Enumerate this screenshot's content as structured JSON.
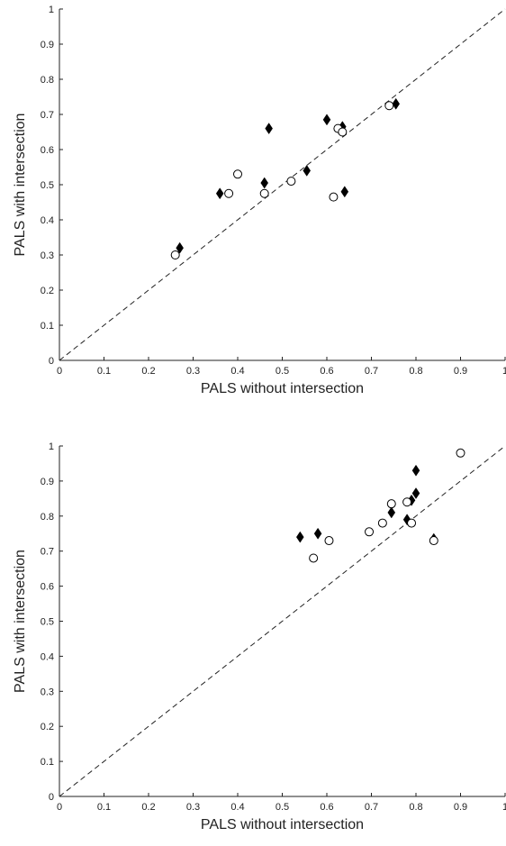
{
  "chart_data": [
    {
      "type": "scatter",
      "xlabel": "PALS without intersection",
      "ylabel": "PALS with intersection",
      "xlim": [
        0,
        1
      ],
      "ylim": [
        0,
        1
      ],
      "xticks": [
        "0",
        "0.1",
        "0.2",
        "0.3",
        "0.4",
        "0.5",
        "0.6",
        "0.7",
        "0.8",
        "0.9",
        "1"
      ],
      "yticks": [
        "0",
        "0.1",
        "0.2",
        "0.3",
        "0.4",
        "0.5",
        "0.6",
        "0.7",
        "0.8",
        "0.9",
        "1"
      ],
      "reference_line": "y = x (dashed)",
      "grid": false,
      "series": [
        {
          "marker": "filled-diamond",
          "points": [
            [
              0.27,
              0.32
            ],
            [
              0.36,
              0.475
            ],
            [
              0.46,
              0.505
            ],
            [
              0.47,
              0.66
            ],
            [
              0.555,
              0.54
            ],
            [
              0.6,
              0.685
            ],
            [
              0.635,
              0.665
            ],
            [
              0.64,
              0.48
            ],
            [
              0.755,
              0.73
            ]
          ]
        },
        {
          "marker": "open-circle",
          "points": [
            [
              0.26,
              0.3
            ],
            [
              0.38,
              0.475
            ],
            [
              0.4,
              0.53
            ],
            [
              0.46,
              0.475
            ],
            [
              0.52,
              0.51
            ],
            [
              0.615,
              0.465
            ],
            [
              0.625,
              0.66
            ],
            [
              0.635,
              0.65
            ],
            [
              0.74,
              0.725
            ]
          ]
        }
      ]
    },
    {
      "type": "scatter",
      "xlabel": "PALS without intersection",
      "ylabel": "PALS with intersection",
      "xlim": [
        0,
        1
      ],
      "ylim": [
        0,
        1
      ],
      "xticks": [
        "0",
        "0.1",
        "0.2",
        "0.3",
        "0.4",
        "0.5",
        "0.6",
        "0.7",
        "0.8",
        "0.9",
        "1"
      ],
      "yticks": [
        "0",
        "0.1",
        "0.2",
        "0.3",
        "0.4",
        "0.5",
        "0.6",
        "0.7",
        "0.8",
        "0.9",
        "1"
      ],
      "reference_line": "y = x (dashed)",
      "grid": false,
      "series": [
        {
          "marker": "filled-diamond",
          "points": [
            [
              0.54,
              0.74
            ],
            [
              0.58,
              0.75
            ],
            [
              0.745,
              0.81
            ],
            [
              0.78,
              0.79
            ],
            [
              0.79,
              0.845
            ],
            [
              0.8,
              0.93
            ],
            [
              0.8,
              0.865
            ],
            [
              0.84,
              0.735
            ]
          ]
        },
        {
          "marker": "open-circle",
          "points": [
            [
              0.57,
              0.68
            ],
            [
              0.605,
              0.73
            ],
            [
              0.695,
              0.755
            ],
            [
              0.725,
              0.78
            ],
            [
              0.745,
              0.835
            ],
            [
              0.78,
              0.84
            ],
            [
              0.79,
              0.78
            ],
            [
              0.84,
              0.73
            ],
            [
              0.9,
              0.98
            ]
          ]
        }
      ]
    }
  ]
}
